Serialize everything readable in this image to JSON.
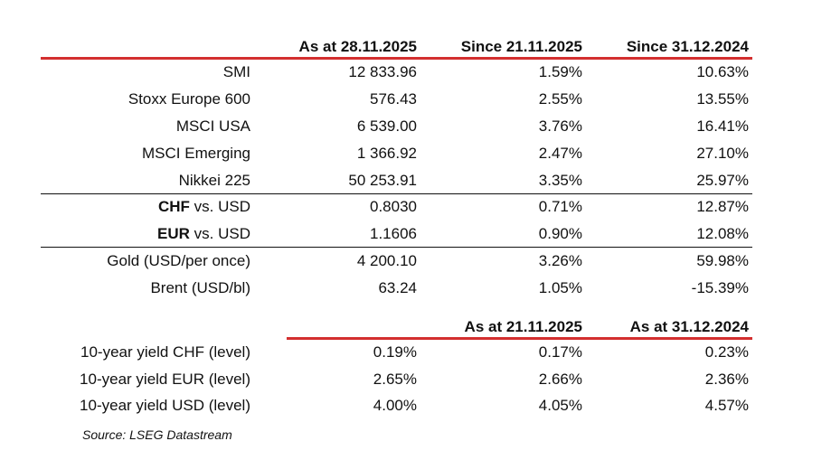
{
  "colors": {
    "accent_line": "#d32f2f"
  },
  "header": [
    "As at 28.11.2025",
    "Since 21.11.2025",
    "Since 31.12.2024"
  ],
  "rows": [
    {
      "label": "SMI",
      "bold": "",
      "values": [
        "12 833.96",
        "1.59%",
        "10.63%"
      ]
    },
    {
      "label": "Stoxx Europe 600",
      "bold": "",
      "values": [
        "576.43",
        "2.55%",
        "13.55%"
      ]
    },
    {
      "label": "MSCI USA",
      "bold": "",
      "values": [
        "6 539.00",
        "3.76%",
        "16.41%"
      ]
    },
    {
      "label": "MSCI Emerging",
      "bold": "",
      "values": [
        "1 366.92",
        "2.47%",
        "27.10%"
      ]
    },
    {
      "label": "Nikkei 225",
      "bold": "",
      "values": [
        "50 253.91",
        "3.35%",
        "25.97%"
      ]
    },
    {
      "label": " vs. USD",
      "bold": "CHF",
      "values": [
        "0.8030",
        "0.71%",
        "12.87%"
      ]
    },
    {
      "label": " vs. USD",
      "bold": "EUR",
      "values": [
        "1.1606",
        "0.90%",
        "12.08%"
      ]
    },
    {
      "label": "Gold (USD/per once)",
      "bold": "",
      "values": [
        "4 200.10",
        "3.26%",
        "59.98%"
      ]
    },
    {
      "label": "Brent (USD/bl)",
      "bold": "",
      "values": [
        "63.24",
        "1.05%",
        "-15.39%"
      ]
    }
  ],
  "yield_header": [
    "As at 21.11.2025",
    "As at 31.12.2024"
  ],
  "yield_rows": [
    {
      "label": "10-year yield CHF (level)",
      "values": [
        "0.19%",
        "0.17%",
        "0.23%"
      ]
    },
    {
      "label": "10-year yield EUR (level)",
      "values": [
        "2.65%",
        "2.66%",
        "2.36%"
      ]
    },
    {
      "label": "10-year yield USD (level)",
      "values": [
        "4.00%",
        "4.05%",
        "4.57%"
      ]
    }
  ],
  "source": "Source: LSEG Datastream"
}
